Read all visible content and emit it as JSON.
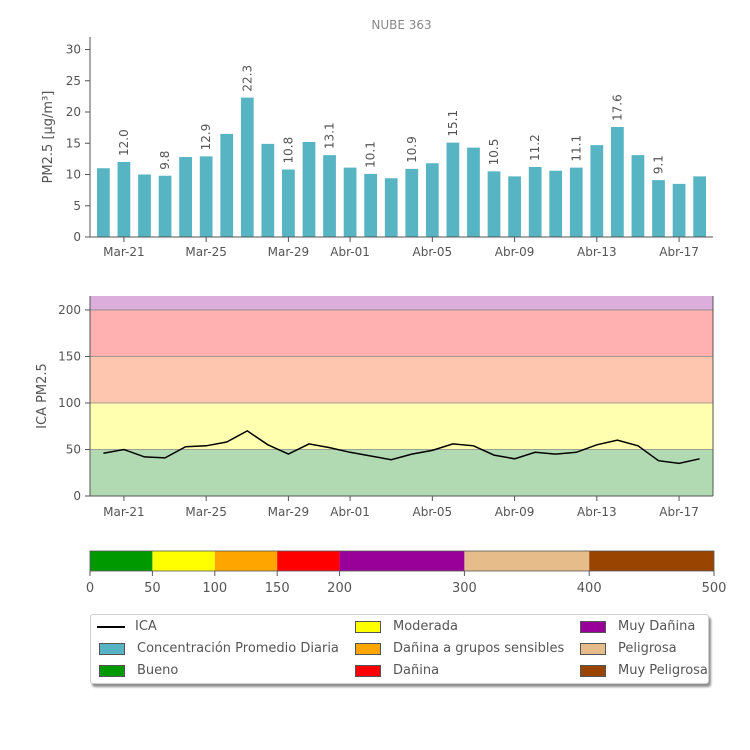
{
  "chart_data": [
    {
      "type": "bar",
      "title": "NUBE 363",
      "ylabel": "PM2.5 [μg/m³]",
      "ylim": [
        0,
        32
      ],
      "yticks": [
        0,
        5,
        10,
        15,
        20,
        25,
        30
      ],
      "categories": [
        "Mar-20",
        "Mar-21",
        "Mar-22",
        "Mar-23",
        "Mar-24",
        "Mar-25",
        "Mar-26",
        "Mar-27",
        "Mar-28",
        "Mar-29",
        "Mar-30",
        "Mar-31",
        "Abr-01",
        "Abr-02",
        "Abr-03",
        "Abr-04",
        "Abr-05",
        "Abr-06",
        "Abr-07",
        "Abr-08",
        "Abr-09",
        "Abr-10",
        "Abr-11",
        "Abr-12",
        "Abr-13",
        "Abr-14",
        "Abr-15",
        "Abr-16",
        "Abr-17",
        "Abr-18"
      ],
      "tick_labels": [
        "Mar-21",
        "Mar-25",
        "Mar-29",
        "Abr-01",
        "Abr-05",
        "Abr-09",
        "Abr-13",
        "Abr-17"
      ],
      "values": [
        11.0,
        12.0,
        10.0,
        9.8,
        12.8,
        12.9,
        16.5,
        22.3,
        14.9,
        10.8,
        15.2,
        13.1,
        11.1,
        10.1,
        9.4,
        10.9,
        11.8,
        15.1,
        14.3,
        10.5,
        9.7,
        11.2,
        10.6,
        11.1,
        14.7,
        17.6,
        13.1,
        9.1,
        8.5,
        9.7
      ],
      "data_labels": [
        {
          "category": "Mar-21",
          "text": "12.0"
        },
        {
          "category": "Mar-23",
          "text": "9.8"
        },
        {
          "category": "Mar-25",
          "text": "12.9"
        },
        {
          "category": "Mar-27",
          "text": "22.3"
        },
        {
          "category": "Mar-29",
          "text": "10.8"
        },
        {
          "category": "Mar-31",
          "text": "13.1"
        },
        {
          "category": "Abr-02",
          "text": "10.1"
        },
        {
          "category": "Abr-04",
          "text": "10.9"
        },
        {
          "category": "Abr-06",
          "text": "15.1"
        },
        {
          "category": "Abr-08",
          "text": "10.5"
        },
        {
          "category": "Abr-10",
          "text": "11.2"
        },
        {
          "category": "Abr-12",
          "text": "11.1"
        },
        {
          "category": "Abr-14",
          "text": "17.6"
        },
        {
          "category": "Abr-16",
          "text": "9.1"
        }
      ],
      "bar_color": "#56b4c3"
    },
    {
      "type": "line",
      "ylabel": "ICA PM2.5",
      "ylim": [
        0,
        215
      ],
      "yticks": [
        0,
        50,
        100,
        150,
        200
      ],
      "categories": [
        "Mar-20",
        "Mar-21",
        "Mar-22",
        "Mar-23",
        "Mar-24",
        "Mar-25",
        "Mar-26",
        "Mar-27",
        "Mar-28",
        "Mar-29",
        "Mar-30",
        "Mar-31",
        "Abr-01",
        "Abr-02",
        "Abr-03",
        "Abr-04",
        "Abr-05",
        "Abr-06",
        "Abr-07",
        "Abr-08",
        "Abr-09",
        "Abr-10",
        "Abr-11",
        "Abr-12",
        "Abr-13",
        "Abr-14",
        "Abr-15",
        "Abr-16",
        "Abr-17",
        "Abr-18"
      ],
      "tick_labels": [
        "Mar-21",
        "Mar-25",
        "Mar-29",
        "Abr-01",
        "Abr-05",
        "Abr-09",
        "Abr-13",
        "Abr-17"
      ],
      "series": [
        {
          "name": "ICA",
          "color": "#000000",
          "values": [
            46,
            50,
            42,
            41,
            53,
            54,
            58,
            70,
            55,
            45,
            56,
            52,
            47,
            43,
            39,
            45,
            49,
            56,
            54,
            44,
            40,
            47,
            45,
            47,
            55,
            60,
            54,
            38,
            35,
            40
          ]
        }
      ],
      "bands": [
        {
          "from": 0,
          "to": 50,
          "color": "#b2dab2"
        },
        {
          "from": 50,
          "to": 100,
          "color": "#ffffaf"
        },
        {
          "from": 100,
          "to": 150,
          "color": "#ffc6af"
        },
        {
          "from": 150,
          "to": 200,
          "color": "#ffb0b0"
        },
        {
          "from": 200,
          "to": 215,
          "color": "#dcaedc"
        }
      ]
    },
    {
      "type": "colorbar",
      "ticks": [
        0,
        50,
        100,
        150,
        200,
        300,
        400,
        500
      ],
      "segments": [
        {
          "from": 0,
          "to": 50,
          "color": "#009900"
        },
        {
          "from": 50,
          "to": 100,
          "color": "#ffff00"
        },
        {
          "from": 100,
          "to": 150,
          "color": "#ffa500"
        },
        {
          "from": 150,
          "to": 200,
          "color": "#ff0000"
        },
        {
          "from": 200,
          "to": 300,
          "color": "#990099"
        },
        {
          "from": 300,
          "to": 400,
          "color": "#e6bc8a"
        },
        {
          "from": 400,
          "to": 500,
          "color": "#994400"
        }
      ]
    }
  ],
  "legend": [
    {
      "label": "ICA",
      "kind": "line",
      "color": "#000000"
    },
    {
      "label": "Concentración Promedio Diaria",
      "kind": "swatch",
      "color": "#56b4c3"
    },
    {
      "label": "Bueno",
      "kind": "swatch",
      "color": "#009900"
    },
    {
      "label": "Moderada",
      "kind": "swatch",
      "color": "#ffff00"
    },
    {
      "label": "Dañina a grupos sensibles",
      "kind": "swatch",
      "color": "#ffa500"
    },
    {
      "label": "Dañina",
      "kind": "swatch",
      "color": "#ff0000"
    },
    {
      "label": "Muy Dañina",
      "kind": "swatch",
      "color": "#990099"
    },
    {
      "label": "Peligrosa",
      "kind": "swatch",
      "color": "#e6bc8a"
    },
    {
      "label": "Muy Peligrosa",
      "kind": "swatch",
      "color": "#994400"
    }
  ]
}
